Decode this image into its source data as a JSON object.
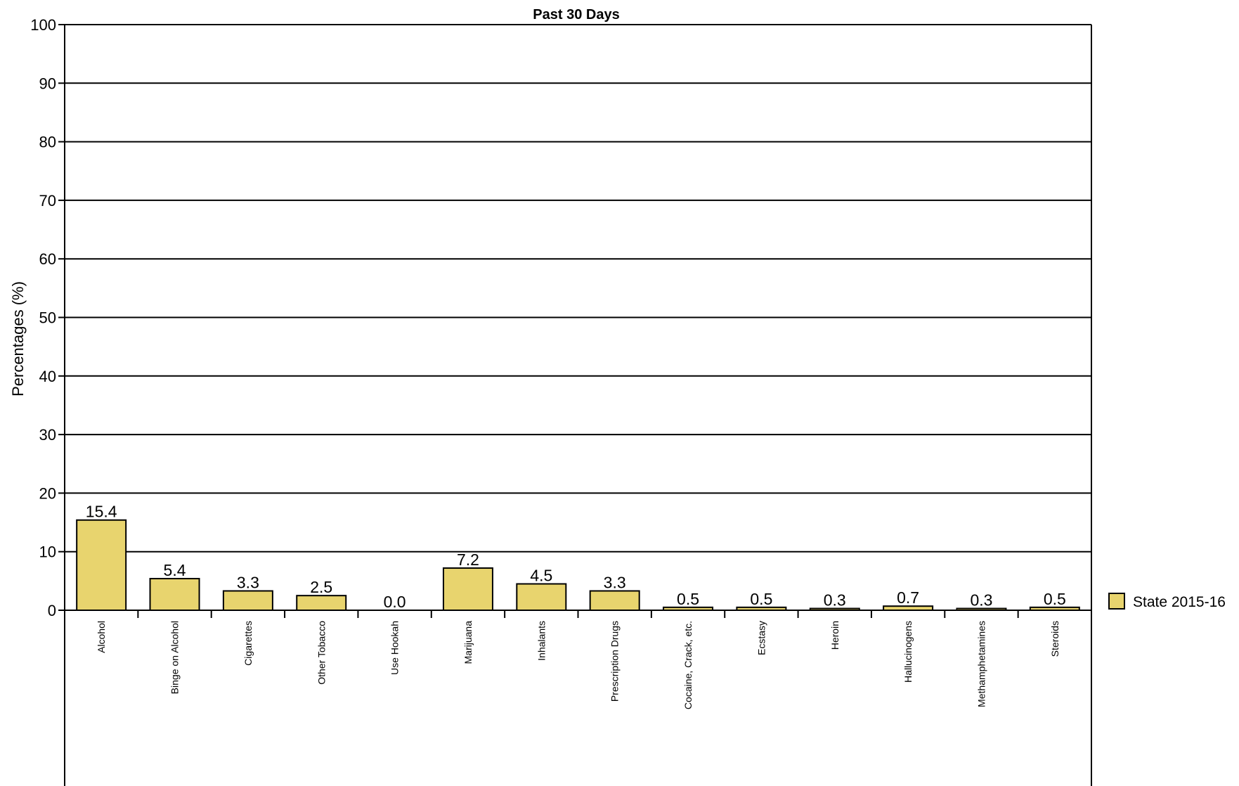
{
  "chart_data": {
    "type": "bar",
    "title": "Past 30 Days",
    "xlabel": "",
    "ylabel": "Percentages (%)",
    "ylim": [
      0,
      100
    ],
    "yticks": [
      0,
      10,
      20,
      30,
      40,
      50,
      60,
      70,
      80,
      90,
      100
    ],
    "grid": true,
    "legend_position": "right",
    "categories": [
      "Alcohol",
      "Binge on Alcohol",
      "Cigarettes",
      "Other Tobacco",
      "Use Hookah",
      "Marijuana",
      "Inhalants",
      "Prescription Drugs",
      "Cocaine, Crack, etc.",
      "Ecstasy",
      "Heroin",
      "Hallucinogens",
      "Methamphetamines",
      "Steroids"
    ],
    "series": [
      {
        "name": "State 2015-16",
        "color": "#e8d46e",
        "values": [
          15.4,
          5.4,
          3.3,
          2.5,
          0.0,
          7.2,
          4.5,
          3.3,
          0.5,
          0.5,
          0.3,
          0.7,
          0.3,
          0.5
        ],
        "labels": [
          "15.4",
          "5.4",
          "3.3",
          "2.5",
          "0.0",
          "7.2",
          "4.5",
          "3.3",
          "0.5",
          "0.5",
          "0.3",
          "0.7",
          "0.3",
          "0.5"
        ]
      }
    ]
  }
}
